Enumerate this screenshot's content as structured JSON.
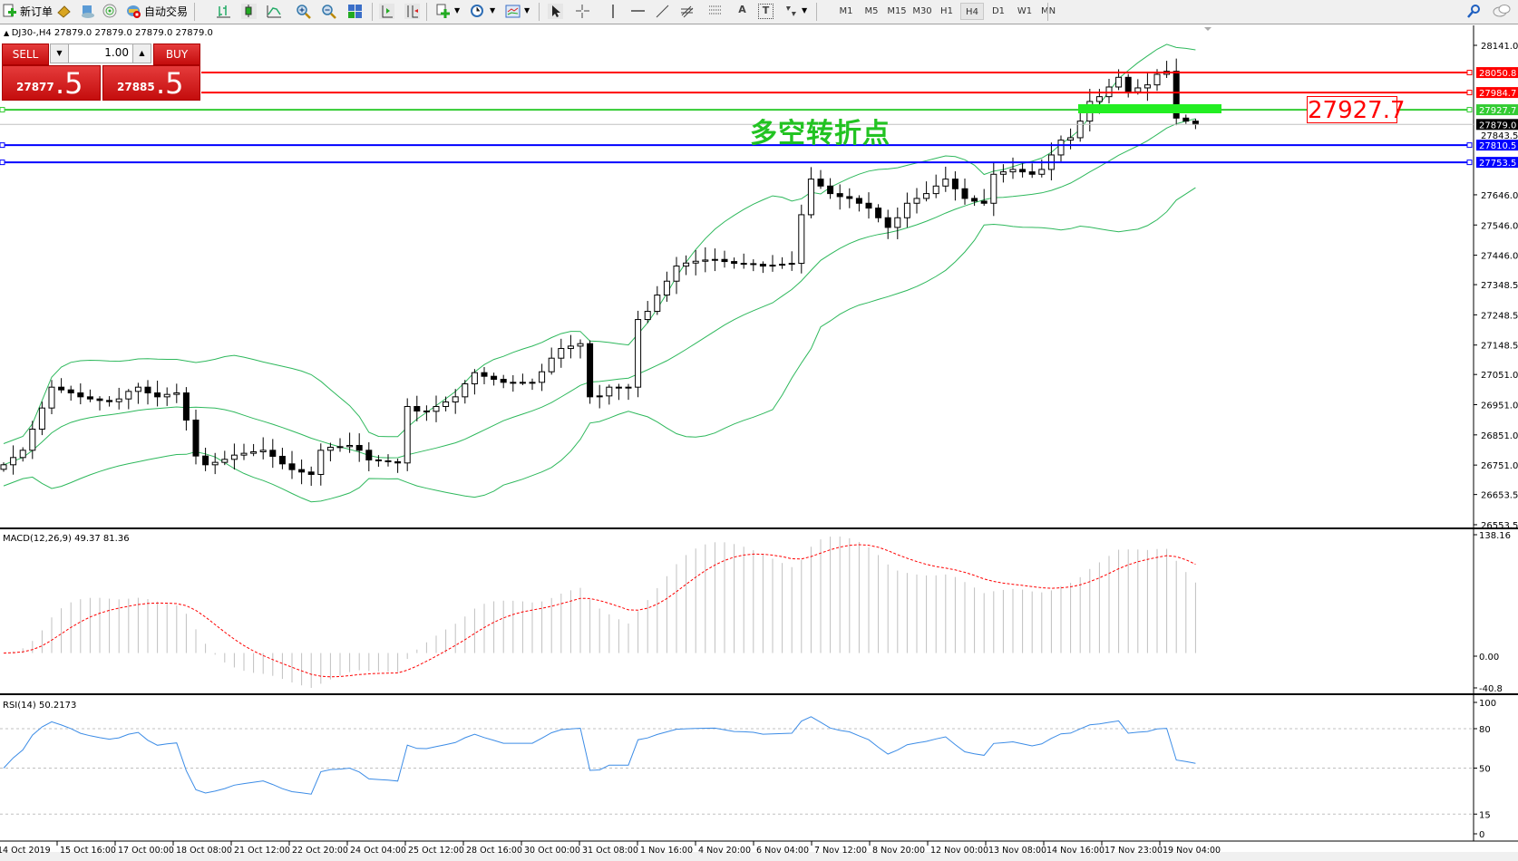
{
  "toolbar": {
    "new_order": "新订单",
    "auto_trading": "自动交易",
    "timeframes": [
      "M1",
      "M5",
      "M15",
      "M30",
      "H1",
      "H4",
      "D1",
      "W1",
      "MN"
    ],
    "active_timeframe": "H4",
    "icons": [
      "new-order-icon",
      "market-watch-icon",
      "navigator-icon",
      "signal-icon",
      "auto-trading-icon",
      "bar-chart-icon",
      "candlestick-icon",
      "line-chart-icon",
      "zoom-in-icon",
      "zoom-out-icon",
      "tile-windows-icon",
      "chart-shift-icon",
      "autoscroll-icon",
      "add-indicator-icon",
      "period-clock-icon",
      "templates-icon",
      "cursor-icon",
      "crosshair-icon",
      "vertical-line-icon",
      "horizontal-line-icon",
      "trendline-icon",
      "fibonacci-icon",
      "channel-icon",
      "text-icon",
      "text-label-icon",
      "arrows-icon",
      "search-icon",
      "chat-icon"
    ]
  },
  "chart": {
    "header": "DJ30-,H4  27879.0 27879.0 27879.0 27879.0",
    "one_click": {
      "sell_label": "SELL",
      "buy_label": "BUY",
      "lot": "1.00",
      "sell_price_main": "27877",
      "sell_price_big": ".5",
      "buy_price_main": "27885",
      "buy_price_big": ".5"
    },
    "annotation": "多空转折点",
    "annotation_box": "27927.7",
    "price_axis": [
      "28141.0",
      "27646.0",
      "27546.0",
      "27446.0",
      "27348.5",
      "27248.5",
      "27148.5",
      "27051.0",
      "26951.0",
      "26851.0",
      "26751.0",
      "26653.5",
      "26553.5"
    ],
    "hidden_ticks": [
      "27843.5"
    ],
    "levels": [
      {
        "price": "28050.8",
        "color": "#ff0000"
      },
      {
        "price": "27984.7",
        "color": "#ff0000"
      },
      {
        "price": "27927.7",
        "color": "#33cc33"
      },
      {
        "price": "27879.0",
        "color": "#000000",
        "current": true
      },
      {
        "price": "27810.5",
        "color": "#0000ff"
      },
      {
        "price": "27753.5",
        "color": "#0000ff"
      }
    ],
    "closes": [
      26752,
      26776,
      26800,
      26870,
      26940,
      27009,
      27000,
      26990,
      26977,
      26970,
      26965,
      26961,
      26970,
      26995,
      27009,
      26990,
      26977,
      26985,
      26990,
      26900,
      26781,
      26752,
      26760,
      26770,
      26784,
      26790,
      26795,
      26800,
      26780,
      26755,
      26736,
      26728,
      26720,
      26800,
      26810,
      26812,
      26816,
      26800,
      26768,
      26765,
      26762,
      26758,
      26945,
      26930,
      26929,
      26945,
      26960,
      26977,
      27020,
      27057,
      27045,
      27035,
      27025,
      27025,
      27025,
      27025,
      27060,
      27105,
      27137,
      27145,
      27153,
      26977,
      26980,
      27009,
      27009,
      27009,
      27233,
      27260,
      27314,
      27360,
      27410,
      27420,
      27426,
      27430,
      27432,
      27425,
      27419,
      27418,
      27416,
      27410,
      27413,
      27416,
      27419,
      27580,
      27698,
      27675,
      27650,
      27640,
      27634,
      27618,
      27602,
      27570,
      27538,
      27570,
      27618,
      27634,
      27650,
      27675,
      27698,
      27666,
      27634,
      27625,
      27618,
      27714,
      27722,
      27730,
      27722,
      27714,
      27730,
      27778,
      27827,
      27835,
      27890,
      27955,
      27971,
      28003,
      28035,
      27987,
      28000,
      28010,
      28045,
      28055,
      27900,
      27890,
      27879
    ]
  },
  "macd": {
    "label": "MACD(12,26,9) 49.37 81.36",
    "axis": [
      "138.16",
      "0.00",
      "-40.8"
    ]
  },
  "rsi": {
    "label": "RSI(14) 50.2173",
    "axis": [
      "100",
      "80",
      "50",
      "15",
      "0"
    ]
  },
  "time_axis": [
    "14 Oct 2019",
    "15 Oct 16:00",
    "17 Oct 00:00",
    "18 Oct 08:00",
    "21 Oct 12:00",
    "22 Oct 20:00",
    "24 Oct 04:00",
    "25 Oct 12:00",
    "28 Oct 16:00",
    "30 Oct 00:00",
    "31 Oct 08:00",
    "1 Nov 16:00",
    "4 Nov 20:00",
    "6 Nov 04:00",
    "7 Nov 12:00",
    "8 Nov 20:00",
    "12 Nov 00:00",
    "13 Nov 08:00",
    "14 Nov 16:00",
    "17 Nov 23:00",
    "19 Nov 04:00"
  ],
  "colors": {
    "bands": "#2eb85c",
    "macd_hist": "#c0c0c0",
    "macd_signal": "#ff0000",
    "rsi": "#3c8ce6",
    "overlay_bar": "#22ee22"
  }
}
